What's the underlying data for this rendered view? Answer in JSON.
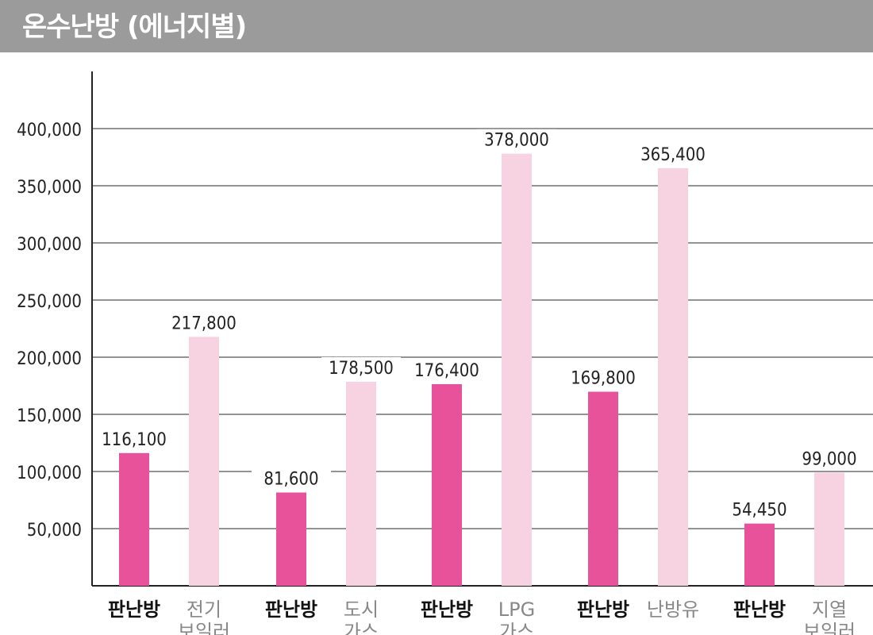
{
  "title": "온수난방 (에너지별)",
  "chart_data": {
    "type": "bar",
    "y_ticks": [
      "50,000",
      "100,000",
      "150,000",
      "200,000",
      "250,000",
      "300,000",
      "350,000",
      "400,000"
    ],
    "ylim": [
      0,
      400000
    ],
    "grid": true,
    "bars": [
      {
        "label": "판난방",
        "value": 116100,
        "value_label": "116,100",
        "kind": "panel"
      },
      {
        "label": "전기보일러",
        "value": 217800,
        "value_label": "217,800",
        "kind": "energy"
      },
      {
        "label": "판난방",
        "value": 81600,
        "value_label": "81,600",
        "kind": "panel"
      },
      {
        "label": "도시가스",
        "value": 178500,
        "value_label": "178,500",
        "kind": "energy"
      },
      {
        "label": "판난방",
        "value": 176400,
        "value_label": "176,400",
        "kind": "panel"
      },
      {
        "label": "LPG가스",
        "value": 378000,
        "value_label": "378,000",
        "kind": "energy"
      },
      {
        "label": "판난방",
        "value": 169800,
        "value_label": "169,800",
        "kind": "panel"
      },
      {
        "label": "난방유",
        "value": 365400,
        "value_label": "365,400",
        "kind": "energy"
      },
      {
        "label": "판난방",
        "value": 54450,
        "value_label": "54,450",
        "kind": "panel"
      },
      {
        "label": "지열보일러",
        "value": 99000,
        "value_label": "99,000",
        "kind": "energy"
      }
    ],
    "colors": {
      "panel": "#e8529a",
      "energy": "#f7d3e2",
      "grid": "#555555",
      "axis": "#222222",
      "panel_text": "#111111",
      "energy_text": "#888888"
    }
  }
}
